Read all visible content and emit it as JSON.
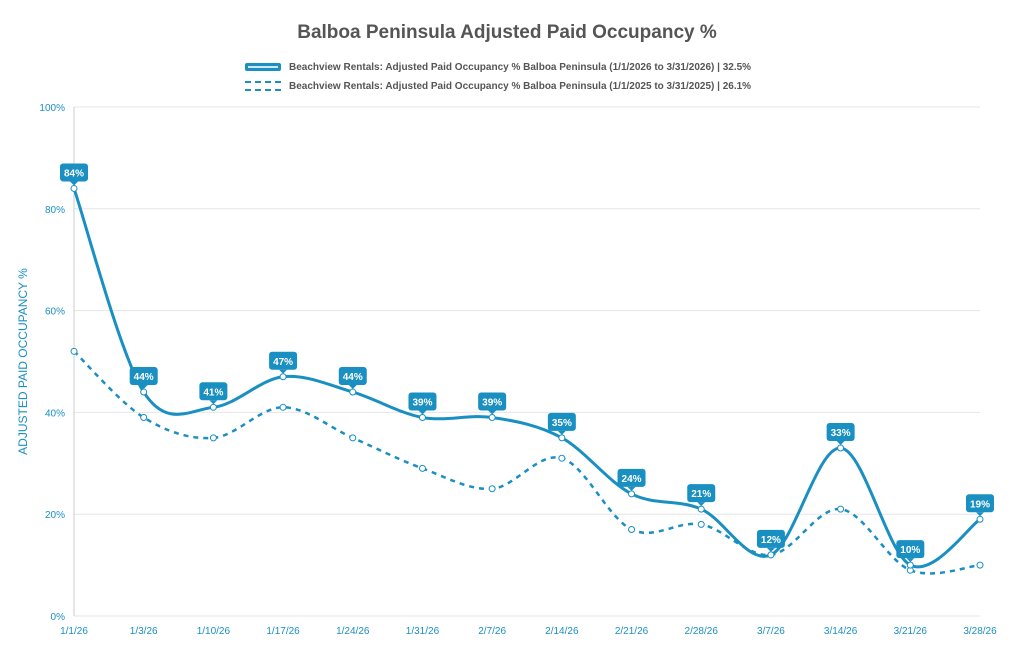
{
  "chart_data": {
    "type": "line",
    "title": "Balboa Peninsula Adjusted Paid Occupancy %",
    "ylabel": "ADJUSTED PAID OCCUPANCY %",
    "xlabel": "",
    "ylim": [
      0,
      100
    ],
    "yticks": [
      0,
      20,
      40,
      60,
      80,
      100
    ],
    "ytick_labels": [
      "0%",
      "20%",
      "40%",
      "60%",
      "80%",
      "100%"
    ],
    "categories": [
      "1/1/26",
      "1/3/26",
      "1/10/26",
      "1/17/26",
      "1/24/26",
      "1/31/26",
      "2/7/26",
      "2/14/26",
      "2/21/26",
      "2/28/26",
      "3/7/26",
      "3/14/26",
      "3/21/26",
      "3/28/26"
    ],
    "legend_position": "top",
    "series": [
      {
        "name": "Beachview Rentals: Adjusted Paid Occupancy % Balboa Peninsula  (1/1/2026 to 3/31/2026) | 32.5%",
        "style": "solid",
        "values": [
          84,
          44,
          41,
          47,
          44,
          39,
          39,
          35,
          24,
          21,
          12,
          33,
          10,
          19
        ],
        "data_labels": [
          "84%",
          "44%",
          "41%",
          "47%",
          "44%",
          "39%",
          "39%",
          "35%",
          "24%",
          "21%",
          "12%",
          "33%",
          "10%",
          "19%"
        ]
      },
      {
        "name": "Beachview Rentals: Adjusted Paid Occupancy % Balboa Peninsula  (1/1/2025 to 3/31/2025) | 26.1%",
        "style": "dashed",
        "values": [
          52,
          39,
          35,
          41,
          35,
          29,
          25,
          31,
          17,
          18,
          12,
          21,
          9,
          10
        ]
      }
    ],
    "colors": {
      "line": "#1a8fc2",
      "grid": "#e6e6e6",
      "label_bg": "#1a8fc2"
    }
  }
}
